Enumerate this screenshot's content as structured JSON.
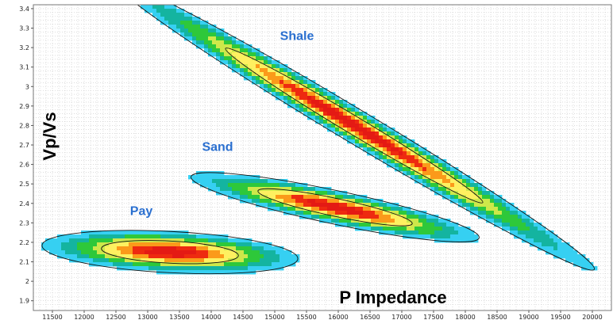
{
  "chart_data": {
    "type": "heatmap",
    "title": "",
    "xlabel": "P Impedance",
    "ylabel": "Vp/Vs",
    "xlim": [
      11200,
      20300
    ],
    "ylim": [
      1.85,
      3.42
    ],
    "x_ticks": [
      11500,
      12000,
      12500,
      13000,
      13500,
      14000,
      14500,
      15000,
      15500,
      16000,
      16500,
      17000,
      17500,
      18000,
      18500,
      19000,
      19500,
      20000
    ],
    "x_tick_labels": [
      "11500",
      "12000",
      "12500",
      "13000",
      "13500",
      "14000",
      "14500",
      "15000",
      "15500",
      "16000",
      "16500",
      "17000",
      "17500",
      "18000",
      "18500",
      "19000",
      "19500",
      "20000"
    ],
    "y_ticks": [
      1.9,
      2,
      2.1,
      2.2,
      2.3,
      2.4,
      2.5,
      2.6,
      2.7,
      2.8,
      2.9,
      3,
      3.1,
      3.2,
      3.3,
      3.4
    ],
    "y_tick_labels": [
      "1.9",
      "2",
      "2.1",
      "2.2",
      "2.3",
      "2.4",
      "2.5",
      "2.6",
      "2.7",
      "2.8",
      "2.9",
      "3",
      "3.1",
      "3.2",
      "3.3",
      "3.4"
    ],
    "grid": true,
    "legend": "none",
    "colorscale": [
      "#ffffff",
      "#36d0f2",
      "#14b4a0",
      "#2ec83a",
      "#cde84a",
      "#fef060",
      "#fb9a1a",
      "#ee2a10",
      "#e41a14"
    ],
    "clusters": [
      {
        "name": "Shale",
        "center_x": 16250,
        "center_y": 2.8,
        "sigma_major": 1750,
        "sigma_minor": 0.034,
        "angle_deg": -31,
        "label_x": 15350,
        "label_y": 3.24
      },
      {
        "name": "Sand",
        "center_x": 15950,
        "center_y": 2.38,
        "sigma_major": 920,
        "sigma_minor": 0.034,
        "angle_deg": -12,
        "label_x": 14100,
        "label_y": 2.67
      },
      {
        "name": "Pay",
        "center_x": 13350,
        "center_y": 2.15,
        "sigma_major": 800,
        "sigma_minor": 0.042,
        "angle_deg": -3,
        "label_x": 12900,
        "label_y": 2.34
      }
    ],
    "label_color": "#2a6fcf"
  }
}
